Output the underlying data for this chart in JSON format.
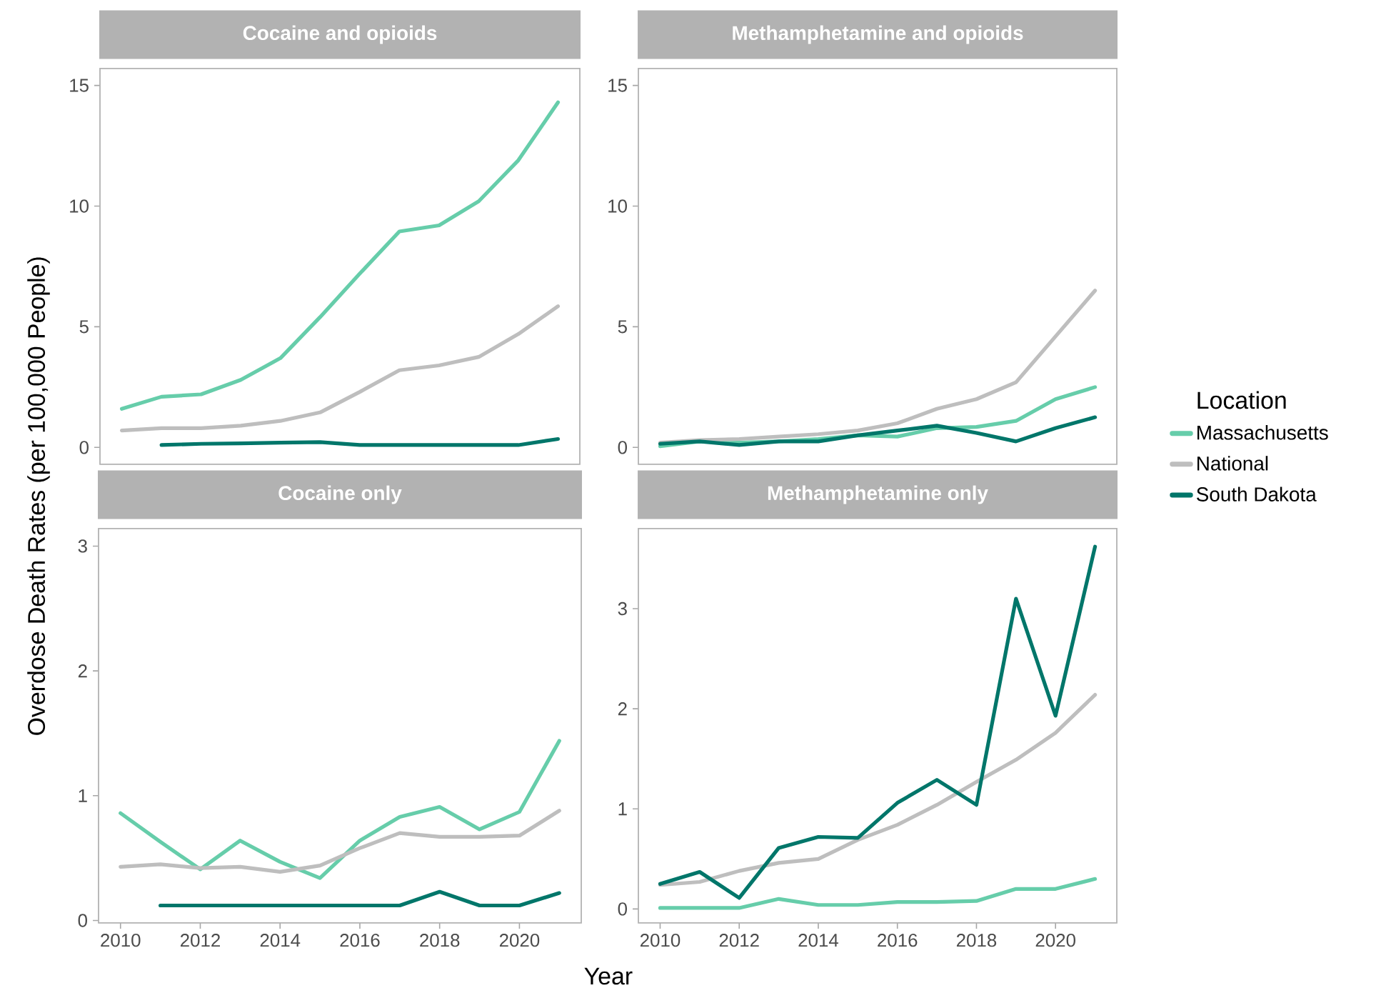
{
  "chart_data": [
    {
      "type": "line",
      "title": "Cocaine and opioids",
      "ylabel": "Overdose Death Rates (per 100,000 People)",
      "legend_title": "Location",
      "legend": "right",
      "x": [
        2010,
        2011,
        2012,
        2013,
        2014,
        2015,
        2016,
        2017,
        2018,
        2019,
        2020,
        2021
      ],
      "xlim": [
        2009.45,
        2021.55
      ],
      "xticks": [
        2010,
        2012,
        2014,
        2016,
        2018,
        2020
      ],
      "ylim": [
        -0.7,
        15.7
      ],
      "yticks": [
        0,
        5,
        10,
        15
      ],
      "tick_labels": "y",
      "grid": false,
      "series": [
        {
          "name": "Massachusetts",
          "color": "#66cdaa",
          "values": [
            1.6,
            2.1,
            2.2,
            2.8,
            3.7,
            5.4,
            7.2,
            8.95,
            9.2,
            10.2,
            11.9,
            14.3
          ]
        },
        {
          "name": "National",
          "color": "#bebebe",
          "values": [
            0.7,
            0.8,
            0.8,
            0.9,
            1.1,
            1.45,
            2.3,
            3.2,
            3.4,
            3.75,
            4.7,
            5.85
          ]
        },
        {
          "name": "South Dakota",
          "color": "#00766a",
          "values": [
            null,
            0.1,
            0.15,
            0.17,
            0.2,
            0.22,
            0.1,
            0.1,
            0.1,
            0.1,
            0.1,
            0.35
          ]
        }
      ]
    },
    {
      "type": "line",
      "title": "Methamphetamine and opioids",
      "x": [
        2010,
        2011,
        2012,
        2013,
        2014,
        2015,
        2016,
        2017,
        2018,
        2019,
        2020,
        2021
      ],
      "xlim": [
        2009.45,
        2021.55
      ],
      "xticks": [
        2010,
        2012,
        2014,
        2016,
        2018,
        2020
      ],
      "ylim": [
        -0.7,
        15.7
      ],
      "yticks": [
        0,
        5,
        10,
        15
      ],
      "tick_labels": "y",
      "grid": false,
      "legend": false,
      "series": [
        {
          "color": "#66cdaa",
          "values": [
            0.05,
            0.25,
            0.2,
            0.25,
            0.35,
            0.5,
            0.45,
            0.8,
            0.85,
            1.1,
            2.0,
            2.5
          ]
        },
        {
          "color": "#bebebe",
          "values": [
            0.2,
            0.3,
            0.35,
            0.45,
            0.55,
            0.7,
            1.0,
            1.6,
            2.0,
            2.7,
            4.6,
            6.5
          ]
        },
        {
          "color": "#00766a",
          "values": [
            0.15,
            0.25,
            0.1,
            0.25,
            0.25,
            0.5,
            0.7,
            0.9,
            0.6,
            0.25,
            0.8,
            1.25
          ]
        }
      ]
    },
    {
      "type": "line",
      "title": "Cocaine only",
      "xlabel": "Year",
      "x": [
        2010,
        2011,
        2012,
        2013,
        2014,
        2015,
        2016,
        2017,
        2018,
        2019,
        2020,
        2021
      ],
      "xlim": [
        2009.45,
        2021.55
      ],
      "xticks": [
        2010,
        2012,
        2014,
        2016,
        2018,
        2020
      ],
      "ylim": [
        -0.02,
        3.14
      ],
      "yticks": [
        0,
        1,
        2,
        3
      ],
      "grid": false,
      "legend": false,
      "series": [
        {
          "color": "#66cdaa",
          "values": [
            0.86,
            0.63,
            0.41,
            0.64,
            0.47,
            0.34,
            0.64,
            0.83,
            0.91,
            0.73,
            0.87,
            1.44
          ]
        },
        {
          "color": "#bebebe",
          "values": [
            0.43,
            0.45,
            0.42,
            0.43,
            0.39,
            0.44,
            0.58,
            0.7,
            0.67,
            0.67,
            0.68,
            0.88
          ]
        },
        {
          "color": "#00766a",
          "values": [
            null,
            0.12,
            0.12,
            0.12,
            0.12,
            0.12,
            0.12,
            0.12,
            0.23,
            0.12,
            0.12,
            0.22
          ]
        }
      ]
    },
    {
      "type": "line",
      "title": "Methamphetamine only",
      "x": [
        2010,
        2011,
        2012,
        2013,
        2014,
        2015,
        2016,
        2017,
        2018,
        2019,
        2020,
        2021
      ],
      "xlim": [
        2009.45,
        2021.55
      ],
      "xticks": [
        2010,
        2012,
        2014,
        2016,
        2018,
        2020
      ],
      "ylim": [
        -0.14,
        3.8
      ],
      "yticks": [
        0,
        1,
        2,
        3
      ],
      "grid": false,
      "legend": false,
      "series": [
        {
          "color": "#66cdaa",
          "values": [
            0.01,
            0.01,
            0.01,
            0.1,
            0.04,
            0.04,
            0.07,
            0.07,
            0.08,
            0.2,
            0.2,
            0.3
          ]
        },
        {
          "color": "#bebebe",
          "values": [
            0.24,
            0.27,
            0.38,
            0.46,
            0.5,
            0.69,
            0.84,
            1.04,
            1.27,
            1.49,
            1.76,
            2.14
          ]
        },
        {
          "color": "#00766a",
          "values": [
            0.25,
            0.37,
            0.11,
            0.61,
            0.72,
            0.71,
            1.06,
            1.29,
            1.04,
            3.1,
            1.93,
            3.62
          ]
        }
      ]
    }
  ]
}
